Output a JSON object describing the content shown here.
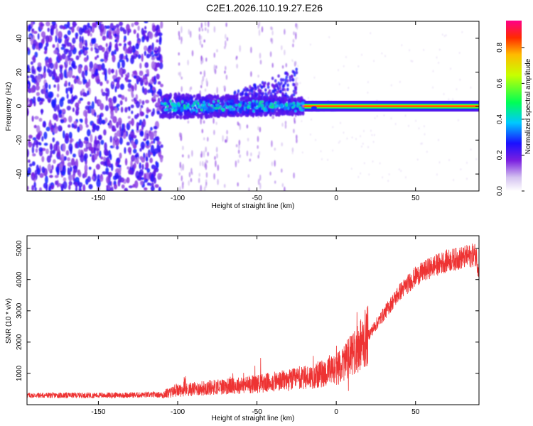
{
  "title": "C2E1.2026.110.19.27.E26",
  "chart_data": [
    {
      "type": "heatmap",
      "name": "spectrogram",
      "xlabel": "Height of straight line (km)",
      "ylabel": "Frequency (Hz)",
      "xlim": [
        -195,
        90
      ],
      "ylim": [
        -50,
        50
      ],
      "xticks": [
        -150,
        -100,
        -50,
        0,
        50
      ],
      "yticks": [
        -40,
        -20,
        0,
        20,
        40
      ],
      "colorbar": {
        "label": "Normalized spectral amplitude",
        "range": [
          0,
          0.95
        ],
        "ticks": [
          0.0,
          0.2,
          0.4,
          0.6,
          0.8
        ]
      },
      "features": {
        "noise_region_x": [
          -195,
          -110
        ],
        "signal_onset_x": -110,
        "signal_center_freq": 0,
        "strong_carrier_from_x": -22,
        "carrier_peak_amplitude": 0.9
      }
    },
    {
      "type": "line",
      "name": "snr",
      "xlabel": "Height of straight line (km)",
      "ylabel": "SNR (10 * v/v)",
      "xlim": [
        -195,
        90
      ],
      "ylim": [
        0,
        5400
      ],
      "xticks": [
        -150,
        -100,
        -50,
        0,
        50
      ],
      "yticks": [
        1000,
        2000,
        3000,
        4000,
        5000
      ],
      "color": "#ee3333",
      "series": [
        {
          "name": "SNR",
          "x": [
            -195,
            -150,
            -110,
            -100,
            -80,
            -60,
            -40,
            -20,
            0,
            10,
            20,
            30,
            40,
            50,
            60,
            70,
            80,
            88,
            90
          ],
          "y": [
            300,
            300,
            320,
            450,
            550,
            620,
            720,
            850,
            1100,
            1600,
            2200,
            2900,
            3600,
            4100,
            4400,
            4600,
            4700,
            4800,
            4300
          ]
        }
      ]
    }
  ]
}
